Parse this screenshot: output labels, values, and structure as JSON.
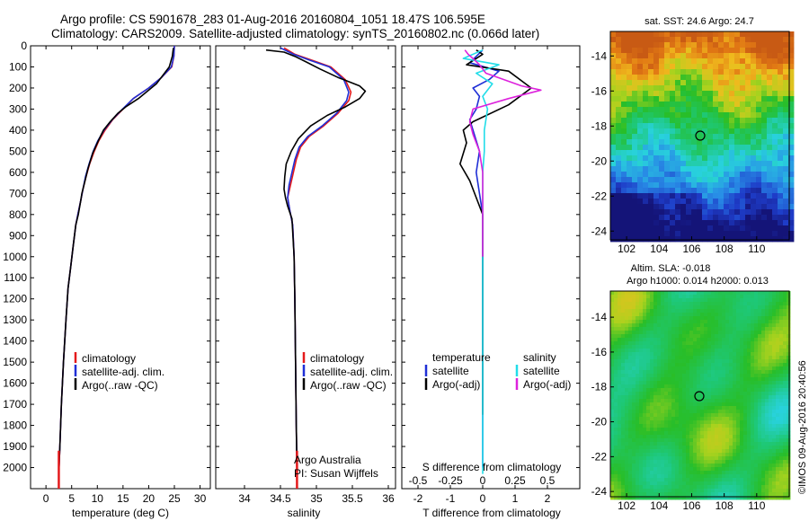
{
  "header": {
    "line1": "Argo profile: CS 5901678_283 01-Aug-2016 20160804_1051 18.47S 106.595E",
    "line2": "Climatology: CARS2009. Satellite-adjusted climatology: synTS_20160802.nc (0.066d later)"
  },
  "colors": {
    "climatology": "#e41a1c",
    "satellite": "#1f2fd6",
    "argo": "#000000",
    "satellite_diff": "#22dde8",
    "argo_adj_diff": "#dd22dd"
  },
  "legend": {
    "climatology": "climatology",
    "satellite_clim": "satellite-adj. clim.",
    "argo_raw": "Argo(..raw -QC)",
    "temperature_head": "temperature",
    "salinity_head": "salinity",
    "satellite": "satellite",
    "argo_adj": "Argo(-adj)"
  },
  "credit": {
    "org": "Argo Australia",
    "pi": "PI: Susan Wijffels"
  },
  "side_text": "©IMOS 09-Aug-2016 20:40:56",
  "map_sst_title": "sat. SST: 24.6 Argo: 24.7",
  "map_sla_title1": "Altim. SLA: -0.018",
  "map_sla_title2": "Argo h1000: 0.014 h2000: 0.013",
  "chart_data": [
    {
      "type": "line",
      "xlabel": "temperature (deg C)",
      "ylabel": "",
      "xlim": [
        -3,
        32
      ],
      "ylim": [
        2100,
        0
      ],
      "xticks": [
        0,
        5,
        10,
        15,
        20,
        25,
        30
      ],
      "yticks": [
        0,
        100,
        200,
        300,
        400,
        500,
        600,
        700,
        800,
        900,
        1000,
        1100,
        1200,
        1300,
        1400,
        1500,
        1600,
        1700,
        1800,
        1900,
        2000
      ],
      "series": [
        {
          "name": "climatology",
          "color": "#e41a1c",
          "points": [
            [
              25.0,
              0
            ],
            [
              24.9,
              50
            ],
            [
              24.5,
              100
            ],
            [
              22.5,
              150
            ],
            [
              20.0,
              200
            ],
            [
              17.0,
              250
            ],
            [
              15.0,
              300
            ],
            [
              13.0,
              350
            ],
            [
              11.5,
              400
            ],
            [
              10.3,
              450
            ],
            [
              9.4,
              500
            ],
            [
              8.5,
              560
            ],
            [
              7.8,
              620
            ],
            [
              7.2,
              680
            ],
            [
              6.8,
              730
            ],
            [
              6.2,
              800
            ],
            [
              5.8,
              850
            ],
            [
              5.3,
              950
            ],
            [
              4.8,
              1050
            ],
            [
              4.3,
              1150
            ],
            [
              3.9,
              1300
            ],
            [
              3.4,
              1500
            ],
            [
              3.0,
              1700
            ],
            [
              2.7,
              1900
            ],
            [
              2.5,
              2030
            ]
          ]
        },
        {
          "name": "satellite-adj. clim.",
          "color": "#1f2fd6",
          "points": [
            [
              25.0,
              0
            ],
            [
              24.9,
              50
            ],
            [
              24.4,
              100
            ],
            [
              22.5,
              150
            ],
            [
              20.0,
              200
            ],
            [
              17.0,
              250
            ],
            [
              14.9,
              300
            ],
            [
              12.9,
              350
            ],
            [
              11.3,
              400
            ],
            [
              10.1,
              450
            ],
            [
              9.2,
              500
            ],
            [
              8.4,
              560
            ],
            [
              7.7,
              620
            ],
            [
              7.2,
              680
            ],
            [
              6.8,
              730
            ],
            [
              6.2,
              800
            ],
            [
              5.8,
              850
            ],
            [
              5.3,
              950
            ],
            [
              4.8,
              1050
            ],
            [
              4.3,
              1150
            ],
            [
              3.9,
              1300
            ],
            [
              3.4,
              1500
            ],
            [
              3.0,
              1700
            ],
            [
              2.7,
              1900
            ],
            [
              2.5,
              2030
            ]
          ]
        },
        {
          "name": "Argo(..raw -QC)",
          "color": "#000000",
          "points": [
            [
              24.8,
              10
            ],
            [
              24.6,
              50
            ],
            [
              24.0,
              100
            ],
            [
              21.5,
              180
            ],
            [
              18.0,
              250
            ],
            [
              15.5,
              290
            ],
            [
              14.0,
              320
            ],
            [
              12.5,
              360
            ],
            [
              11.2,
              400
            ],
            [
              10.0,
              460
            ],
            [
              9.1,
              510
            ],
            [
              8.2,
              580
            ],
            [
              7.6,
              640
            ],
            [
              7.0,
              700
            ],
            [
              6.8,
              730
            ],
            [
              6.3,
              800
            ],
            [
              5.8,
              850
            ],
            [
              5.3,
              950
            ],
            [
              4.8,
              1050
            ],
            [
              4.3,
              1150
            ],
            [
              3.9,
              1300
            ],
            [
              3.4,
              1500
            ],
            [
              3.0,
              1700
            ],
            [
              2.7,
              1900
            ],
            [
              2.5,
              2030
            ]
          ]
        }
      ]
    },
    {
      "type": "line",
      "xlabel": "salinity",
      "ylabel": "",
      "xlim": [
        33.6,
        36.1
      ],
      "ylim": [
        2100,
        0
      ],
      "xticks": [
        34,
        34.5,
        35,
        35.5,
        36
      ],
      "series": [
        {
          "name": "climatology",
          "color": "#e41a1c",
          "points": [
            [
              34.55,
              10
            ],
            [
              34.7,
              40
            ],
            [
              34.95,
              70
            ],
            [
              35.2,
              100
            ],
            [
              35.4,
              160
            ],
            [
              35.48,
              220
            ],
            [
              35.45,
              260
            ],
            [
              35.3,
              320
            ],
            [
              35.1,
              380
            ],
            [
              34.9,
              430
            ],
            [
              34.78,
              480
            ],
            [
              34.72,
              540
            ],
            [
              34.68,
              600
            ],
            [
              34.64,
              660
            ],
            [
              34.6,
              720
            ],
            [
              34.63,
              780
            ],
            [
              34.67,
              850
            ],
            [
              34.69,
              1000
            ],
            [
              34.7,
              1200
            ],
            [
              34.71,
              1500
            ],
            [
              34.72,
              1800
            ],
            [
              34.73,
              2030
            ]
          ]
        },
        {
          "name": "satellite-adj. clim.",
          "color": "#1f2fd6",
          "points": [
            [
              34.5,
              10
            ],
            [
              34.68,
              40
            ],
            [
              34.92,
              70
            ],
            [
              35.18,
              100
            ],
            [
              35.38,
              160
            ],
            [
              35.45,
              220
            ],
            [
              35.42,
              260
            ],
            [
              35.28,
              320
            ],
            [
              35.08,
              380
            ],
            [
              34.88,
              430
            ],
            [
              34.76,
              480
            ],
            [
              34.7,
              540
            ],
            [
              34.66,
              600
            ],
            [
              34.62,
              660
            ],
            [
              34.6,
              720
            ],
            [
              34.63,
              780
            ],
            [
              34.67,
              850
            ],
            [
              34.69,
              1000
            ],
            [
              34.7,
              1200
            ],
            [
              34.71,
              1500
            ],
            [
              34.72,
              1800
            ],
            [
              34.73,
              2030
            ]
          ]
        },
        {
          "name": "Argo(..raw -QC)",
          "color": "#000000",
          "points": [
            [
              34.3,
              20
            ],
            [
              34.55,
              30
            ],
            [
              34.7,
              50
            ],
            [
              34.85,
              75
            ],
            [
              35.05,
              110
            ],
            [
              35.3,
              150
            ],
            [
              35.6,
              190
            ],
            [
              35.68,
              215
            ],
            [
              35.6,
              250
            ],
            [
              35.4,
              290
            ],
            [
              35.15,
              330
            ],
            [
              34.92,
              380
            ],
            [
              34.75,
              440
            ],
            [
              34.65,
              500
            ],
            [
              34.58,
              560
            ],
            [
              34.56,
              620
            ],
            [
              34.55,
              680
            ],
            [
              34.57,
              720
            ],
            [
              34.6,
              760
            ],
            [
              34.66,
              820
            ],
            [
              34.69,
              1000
            ],
            [
              34.7,
              1200
            ],
            [
              34.71,
              1500
            ],
            [
              34.72,
              1800
            ],
            [
              34.73,
              2030
            ]
          ]
        }
      ]
    },
    {
      "type": "line",
      "xlabel": "T difference from climatology",
      "ylabel": "",
      "annotation": "S difference from climatology",
      "xlim": [
        -2.5,
        3.0
      ],
      "ylim": [
        2100,
        0
      ],
      "xticks": [
        -2,
        -1,
        0,
        1,
        2
      ],
      "xticks_top": [
        -0.5,
        -0.25,
        0,
        0.25,
        0.5
      ],
      "series": [
        {
          "name": "temperature satellite",
          "color": "#1f2fd6",
          "points": [
            [
              0.0,
              20
            ],
            [
              -0.4,
              80
            ],
            [
              0.5,
              120
            ],
            [
              0.2,
              160
            ],
            [
              -0.3,
              200
            ],
            [
              -0.1,
              240
            ],
            [
              -0.2,
              300
            ],
            [
              -0.4,
              350
            ],
            [
              -0.3,
              400
            ],
            [
              -0.1,
              500
            ],
            [
              -0.2,
              600
            ],
            [
              -0.1,
              700
            ],
            [
              0.0,
              800
            ],
            [
              0.0,
              1000
            ],
            [
              0.0,
              1500
            ],
            [
              0.0,
              2000
            ]
          ]
        },
        {
          "name": "temperature Argo(-adj)",
          "color": "#000000",
          "points": [
            [
              -0.2,
              20
            ],
            [
              0.0,
              40
            ],
            [
              -0.5,
              90
            ],
            [
              0.8,
              120
            ],
            [
              1.5,
              200
            ],
            [
              0.8,
              280
            ],
            [
              -0.3,
              360
            ],
            [
              -0.6,
              400
            ],
            [
              -0.5,
              460
            ],
            [
              -0.7,
              560
            ],
            [
              -0.4,
              640
            ],
            [
              -0.2,
              720
            ],
            [
              0.0,
              800
            ],
            [
              0.0,
              1000
            ],
            [
              0.0,
              1500
            ],
            [
              0.0,
              1750
            ]
          ]
        },
        {
          "name": "salinity satellite",
          "color": "#22dde8",
          "points": [
            [
              0.0,
              20
            ],
            [
              -0.6,
              60
            ],
            [
              0.5,
              90
            ],
            [
              -0.2,
              130
            ],
            [
              0.3,
              180
            ],
            [
              0.0,
              240
            ],
            [
              0.15,
              300
            ],
            [
              0.05,
              400
            ],
            [
              0.05,
              500
            ],
            [
              0.0,
              600
            ],
            [
              0.0,
              800
            ],
            [
              0.0,
              1000
            ],
            [
              0.0,
              1500
            ],
            [
              0.0,
              2030
            ]
          ]
        },
        {
          "name": "salinity Argo(-adj)",
          "color": "#dd22dd",
          "points": [
            [
              -0.55,
              20
            ],
            [
              -0.45,
              40
            ],
            [
              -0.3,
              60
            ],
            [
              -0.1,
              90
            ],
            [
              0.1,
              130
            ],
            [
              1.2,
              190
            ],
            [
              1.8,
              210
            ],
            [
              0.8,
              250
            ],
            [
              -0.3,
              300
            ],
            [
              -0.4,
              360
            ],
            [
              -0.3,
              420
            ],
            [
              -0.1,
              500
            ],
            [
              0.0,
              600
            ],
            [
              0.0,
              800
            ],
            [
              0.0,
              1000
            ]
          ]
        }
      ]
    },
    {
      "type": "heatmap",
      "title": "sat. SST: 24.6 Argo: 24.7",
      "xlim": [
        101,
        112
      ],
      "ylim": [
        -24.5,
        -12.6
      ],
      "xticks": [
        102,
        104,
        106,
        108,
        110
      ],
      "yticks": [
        -14,
        -16,
        -18,
        -20,
        -22,
        -24
      ],
      "marker": [
        106.6,
        -18.5
      ]
    },
    {
      "type": "heatmap",
      "title": "Altim. SLA: -0.018",
      "xlim": [
        101,
        112
      ],
      "ylim": [
        -24.3,
        -12.5
      ],
      "xticks": [
        102,
        104,
        106,
        108,
        110
      ],
      "yticks": [
        -14,
        -16,
        -18,
        -20,
        -22,
        -24
      ],
      "marker": [
        106.6,
        -18.5
      ]
    }
  ]
}
